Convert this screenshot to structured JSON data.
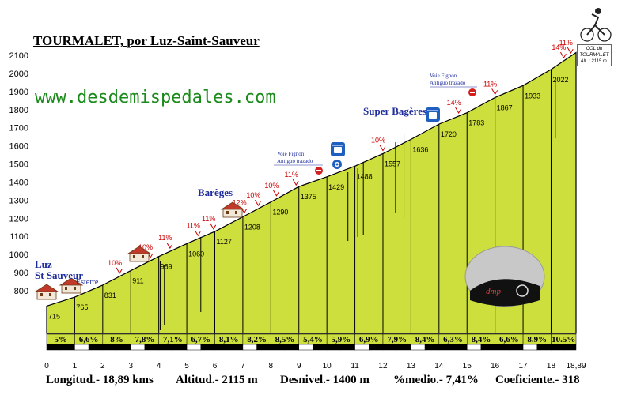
{
  "title": "TOURMALET, por Luz-Saint-Sauveur",
  "website": "www.desdemispedales.com",
  "colors": {
    "fill": "#cddf3c",
    "axis_band": "#000000",
    "percent_band": "#cddf3c",
    "note_text": "#1f2d9c",
    "web_text": "#1a8a1a",
    "grade_text": "#cc0000"
  },
  "chart_data": {
    "type": "area",
    "x": [
      0,
      1,
      2,
      3,
      4,
      5,
      6,
      7,
      8,
      9,
      10,
      11,
      12,
      13,
      14,
      15,
      16,
      17,
      18,
      18.89
    ],
    "y": [
      715,
      765,
      831,
      911,
      989,
      1060,
      1127,
      1208,
      1290,
      1375,
      1429,
      1488,
      1557,
      1636,
      1720,
      1783,
      1867,
      1933,
      2022,
      2115
    ],
    "point_labels": [
      "715",
      "765",
      "831",
      "911",
      "989",
      "1060",
      "1127",
      "1208",
      "1290",
      "1375",
      "1429",
      "1488",
      "1557",
      "1636",
      "1720",
      "1783",
      "1867",
      "1933",
      "2022",
      ""
    ],
    "segment_grades": [
      "5%",
      "6,6%",
      "8%",
      "7,8%",
      "7,1%",
      "6,7%",
      "8,1%",
      "8,2%",
      "8,5%",
      "5,4%",
      "5,9%",
      "6,9%",
      "7,9%",
      "8,4%",
      "6,3%",
      "8,4%",
      "6,6%",
      "8.9%",
      "10.5%"
    ],
    "xticks": [
      "0",
      "1",
      "2",
      "3",
      "4",
      "5",
      "6",
      "7",
      "8",
      "9",
      "10",
      "11",
      "12",
      "13",
      "14",
      "15",
      "16",
      "17",
      "18",
      "18,89"
    ],
    "ytick_values": [
      800,
      900,
      1000,
      1100,
      1200,
      1300,
      1400,
      1500,
      1600,
      1700,
      1800,
      1900,
      2000,
      2100
    ],
    "ylim": [
      650,
      2130
    ],
    "xlim": [
      0,
      18.89
    ],
    "grade_markers": [
      {
        "x": 2.6,
        "label": "10%"
      },
      {
        "x": 3.7,
        "label": "10%"
      },
      {
        "x": 4.4,
        "label": "11%"
      },
      {
        "x": 5.4,
        "label": "11%"
      },
      {
        "x": 5.95,
        "label": "11%"
      },
      {
        "x": 7.05,
        "label": "12%"
      },
      {
        "x": 7.55,
        "label": "10%"
      },
      {
        "x": 8.2,
        "label": "10%"
      },
      {
        "x": 8.9,
        "label": "11%"
      },
      {
        "x": 12.0,
        "label": "10%"
      },
      {
        "x": 14.7,
        "label": "14%"
      },
      {
        "x": 16.0,
        "label": "11%"
      },
      {
        "x": 18.45,
        "label": "14%"
      },
      {
        "x": 18.7,
        "label": "11%"
      }
    ]
  },
  "labels": {
    "luz": "Luz",
    "st_sauveur": "St Sauveur",
    "esterre": "Esterre",
    "bareges": "Barèges",
    "super_bageres": "Super Bagères",
    "voie_fignon_1": "Voie Fignon",
    "antiguo_trazado_1": "Antiguo trazado",
    "voie_fignon_2": "Voie Fignon",
    "antiguo_trazado_2": "Antiguo trazado",
    "summit_line1": "COL du TOURMALET",
    "summit_line2": "Alt. : 2115 m."
  },
  "footer": {
    "longitud": "Longitud.- 18,89 kms",
    "altitud": "Altitud.- 2115 m",
    "desnivel": "Desnivel.- 1400 m",
    "medio": "%medio.- 7,41%",
    "coeficiente": "Coeficiente.- 318"
  },
  "icons": [
    "house-icon",
    "chairlift-icon",
    "no-entry-icon",
    "cyclist-icon",
    "dmp-logo"
  ]
}
